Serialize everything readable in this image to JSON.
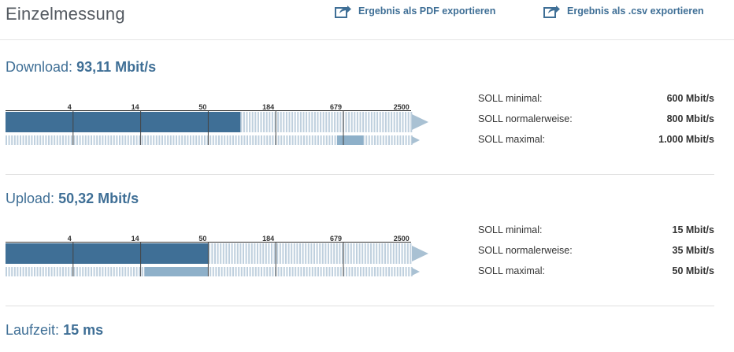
{
  "page": {
    "title": "Einzelmessung"
  },
  "export": {
    "pdf_label": "Ergebnis als PDF exportieren",
    "csv_label": "Ergebnis als .csv exportieren",
    "icon": "share-arrow-icon"
  },
  "scale_ticks": [
    "4",
    "14",
    "50",
    "184",
    "679",
    "2500"
  ],
  "colors": {
    "accent": "#3f6f96",
    "bar_fill": "#3f6f96",
    "bar_track": "#bfd0de",
    "range_fill": "#8eb0c9",
    "arrow": "#a9c1d3"
  },
  "download": {
    "label": "Download:",
    "value": "93,11 Mbit/s",
    "measured_mbits": 93.11,
    "soll": [
      {
        "label": "SOLL minimal:",
        "value": "600 Mbit/s"
      },
      {
        "label": "SOLL normalerweise:",
        "value": "800 Mbit/s"
      },
      {
        "label": "SOLL maximal:",
        "value": "1.000 Mbit/s"
      }
    ],
    "soll_range_mbits": [
      600,
      1000
    ]
  },
  "upload": {
    "label": "Upload:",
    "value": "50,32 Mbit/s",
    "measured_mbits": 50.32,
    "soll": [
      {
        "label": "SOLL minimal:",
        "value": "15 Mbit/s"
      },
      {
        "label": "SOLL normalerweise:",
        "value": "35 Mbit/s"
      },
      {
        "label": "SOLL maximal:",
        "value": "50 Mbit/s"
      }
    ],
    "soll_range_mbits": [
      15,
      50
    ]
  },
  "latency": {
    "label": "Laufzeit:",
    "value": "15 ms"
  }
}
